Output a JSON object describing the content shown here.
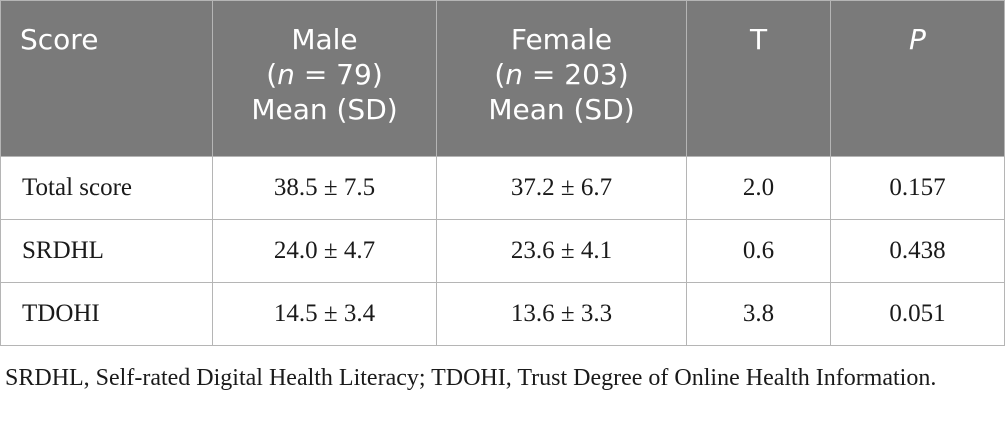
{
  "table": {
    "headers": {
      "score": "Score",
      "male": {
        "name": "Male",
        "n_open": "(",
        "n_var": "n",
        "n_value": " = 79)",
        "stat": "Mean (SD)"
      },
      "female": {
        "name": "Female",
        "n_open": "(",
        "n_var": "n",
        "n_value": " = 203)",
        "stat": "Mean (SD)"
      },
      "t": "T",
      "p": "P"
    },
    "rows": [
      {
        "score": "Total score",
        "male": "38.5 ± 7.5",
        "female": "37.2 ± 6.7",
        "t": "2.0",
        "p": "0.157"
      },
      {
        "score": "SRDHL",
        "male": "24.0 ± 4.7",
        "female": "23.6 ± 4.1",
        "t": "0.6",
        "p": "0.438"
      },
      {
        "score": "TDOHI",
        "male": "14.5 ± 3.4",
        "female": "13.6 ± 3.3",
        "t": "3.8",
        "p": "0.051"
      }
    ]
  },
  "footnote": "SRDHL, Self-rated Digital Health Literacy; TDOHI, Trust Degree of Online Health Information."
}
